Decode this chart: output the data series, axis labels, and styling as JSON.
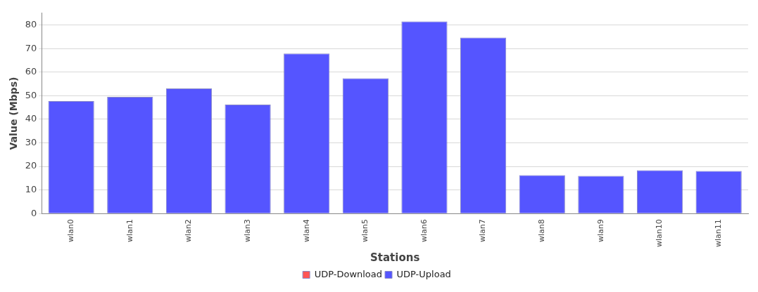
{
  "chart_data": {
    "type": "bar",
    "xlabel": "Stations",
    "ylabel": "Value (Mbps)",
    "categories": [
      "wlan0",
      "wlan1",
      "wlan2",
      "wlan3",
      "wlan4",
      "wlan5",
      "wlan6",
      "wlan7",
      "wlan8",
      "wlan9",
      "wlan10",
      "wlan11"
    ],
    "series": [
      {
        "name": "UDP-Download",
        "color": "#ff5555",
        "values": [
          null,
          null,
          null,
          null,
          null,
          null,
          null,
          null,
          null,
          null,
          null,
          null
        ]
      },
      {
        "name": "UDP-Upload",
        "color": "#5555ff",
        "values": [
          47.7,
          49.5,
          53.1,
          46.2,
          67.9,
          57.4,
          81.5,
          74.7,
          16.3,
          16.0,
          18.4,
          18.1
        ]
      }
    ],
    "ylim": [
      0,
      85
    ],
    "yticks": [
      0,
      10,
      20,
      30,
      40,
      50,
      60,
      70,
      80
    ],
    "grid": "y",
    "legend": "bottom"
  }
}
